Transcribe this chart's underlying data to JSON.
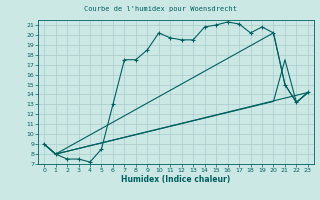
{
  "title": "Courbe de l'humidex pour Woensdrecht",
  "xlabel": "Humidex (Indice chaleur)",
  "bg_color": "#cce8e4",
  "grid_color": "#aacccc",
  "line_color": "#006060",
  "xlim": [
    -0.5,
    23.5
  ],
  "ylim": [
    7,
    21.5
  ],
  "yticks": [
    7,
    8,
    9,
    10,
    11,
    12,
    13,
    14,
    15,
    16,
    17,
    18,
    19,
    20,
    21
  ],
  "xticks": [
    0,
    1,
    2,
    3,
    4,
    5,
    6,
    7,
    8,
    9,
    10,
    11,
    12,
    13,
    14,
    15,
    16,
    17,
    18,
    19,
    20,
    21,
    22,
    23
  ],
  "line1_x": [
    0,
    1,
    2,
    3,
    4,
    5,
    6,
    7,
    8,
    9,
    10,
    11,
    12,
    13,
    14,
    15,
    16,
    17,
    18,
    19,
    20,
    21,
    22,
    23
  ],
  "line1_y": [
    9.0,
    8.0,
    7.5,
    7.5,
    7.2,
    8.5,
    13.0,
    17.5,
    17.5,
    18.5,
    20.2,
    19.7,
    19.5,
    19.5,
    20.8,
    21.0,
    21.3,
    21.1,
    20.2,
    20.8,
    20.2,
    15.0,
    13.2,
    14.2
  ],
  "line2_x": [
    0,
    1,
    23
  ],
  "line2_y": [
    9.0,
    8.0,
    14.2
  ],
  "line3_x": [
    0,
    1,
    20,
    21,
    22,
    23
  ],
  "line3_y": [
    9.0,
    8.0,
    20.2,
    15.0,
    13.2,
    14.2
  ],
  "line4_x": [
    0,
    1,
    20,
    21,
    22,
    23
  ],
  "line4_y": [
    9.0,
    8.0,
    13.3,
    17.5,
    13.2,
    14.2
  ]
}
